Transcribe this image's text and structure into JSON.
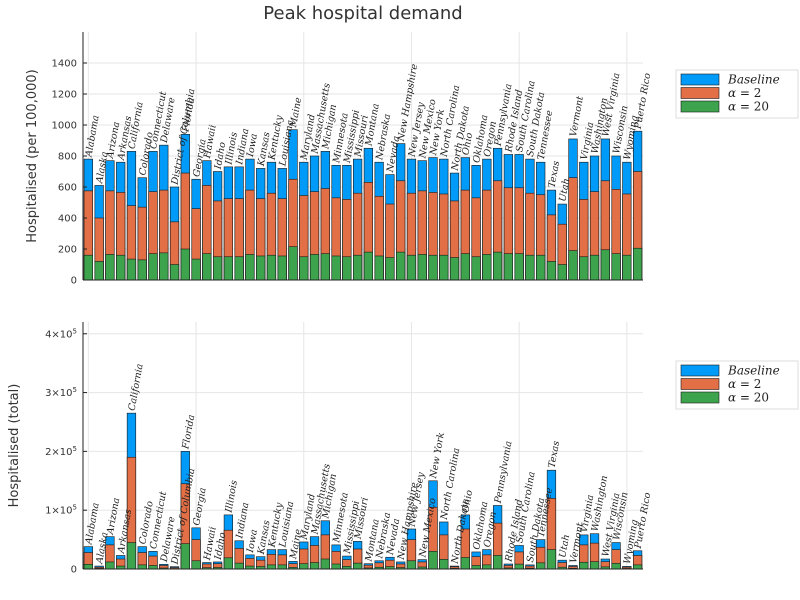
{
  "figure_title": "Peak hospital demand",
  "colors": {
    "baseline": "#009af9",
    "alpha2": "#e26f46",
    "alpha20": "#3da44d"
  },
  "chart_data": [
    {
      "type": "bar",
      "title": "Peak hospital demand",
      "ylabel": "Hospitalised (per 100,000)",
      "ylim": [
        0,
        1600
      ],
      "yticks": [
        0,
        200,
        400,
        600,
        800,
        1000,
        1200,
        1400
      ],
      "ytick_labels": [
        "0",
        "200",
        "400",
        "600",
        "800",
        "1000",
        "1200",
        "1400"
      ],
      "legend_placement": "right",
      "legend": [
        "Baseline",
        "α = 2",
        "α = 20"
      ],
      "grid": true,
      "categories": [
        "Alabama",
        "Alaska",
        "Arizona",
        "Arkansas",
        "California",
        "Colorado",
        "Connecticut",
        "Delaware",
        "District of Columbia",
        "Florida",
        "Georgia",
        "Hawaii",
        "Idaho",
        "Illinois",
        "Indiana",
        "Iowa",
        "Kansas",
        "Kentucky",
        "Louisiana",
        "Maine",
        "Maryland",
        "Massachusetts",
        "Michigan",
        "Minnesota",
        "Mississippi",
        "Missouri",
        "Montana",
        "Nebraska",
        "Nevada",
        "New Hampshire",
        "New Jersey",
        "New Mexico",
        "New York",
        "North Carolina",
        "North Dakota",
        "Ohio",
        "Oklahoma",
        "Oregon",
        "Pennsylvania",
        "Rhode Island",
        "South Carolina",
        "South Dakota",
        "Tennessee",
        "Texas",
        "Utah",
        "Vermont",
        "Virginia",
        "Washington",
        "West Virginia",
        "Wisconsin",
        "Wyoming",
        "Puerto Rico"
      ],
      "series": [
        {
          "name": "Baseline",
          "values": [
            780,
            610,
            770,
            760,
            830,
            660,
            830,
            870,
            600,
            940,
            650,
            770,
            700,
            730,
            730,
            780,
            720,
            760,
            720,
            970,
            760,
            800,
            830,
            740,
            740,
            780,
            850,
            760,
            680,
            880,
            780,
            770,
            790,
            780,
            690,
            790,
            740,
            780,
            850,
            810,
            810,
            780,
            760,
            580,
            490,
            910,
            760,
            800,
            910,
            800,
            760,
            960
          ]
        },
        {
          "name": "α = 2",
          "values": [
            575,
            400,
            575,
            565,
            480,
            470,
            570,
            580,
            375,
            690,
            460,
            610,
            510,
            525,
            525,
            580,
            525,
            560,
            525,
            650,
            545,
            570,
            590,
            530,
            520,
            560,
            630,
            540,
            490,
            640,
            560,
            575,
            565,
            555,
            510,
            580,
            530,
            580,
            640,
            595,
            595,
            560,
            550,
            420,
            360,
            660,
            520,
            570,
            640,
            585,
            555,
            700
          ]
        },
        {
          "name": "α = 20",
          "values": [
            160,
            120,
            165,
            160,
            135,
            130,
            170,
            175,
            100,
            200,
            135,
            170,
            150,
            150,
            150,
            165,
            155,
            160,
            155,
            215,
            150,
            165,
            170,
            155,
            150,
            160,
            180,
            155,
            145,
            180,
            160,
            165,
            160,
            160,
            145,
            170,
            150,
            165,
            180,
            170,
            170,
            160,
            160,
            120,
            100,
            190,
            150,
            160,
            195,
            170,
            160,
            205
          ]
        }
      ]
    },
    {
      "type": "bar",
      "ylabel": "Hospitalised (total)",
      "ylim": [
        0,
        420000
      ],
      "yticks": [
        0,
        100000,
        200000,
        300000,
        400000
      ],
      "ytick_labels": [
        {
          "mant": "0",
          "exp": ""
        },
        {
          "mant": "1×10",
          "exp": "5"
        },
        {
          "mant": "2×10",
          "exp": "5"
        },
        {
          "mant": "3×10",
          "exp": "5"
        },
        {
          "mant": "4×10",
          "exp": "5"
        }
      ],
      "legend_placement": "right",
      "legend": [
        "Baseline",
        "α = 2",
        "α = 20"
      ],
      "grid": true,
      "categories": [
        "Alabama",
        "Alaska",
        "Arizona",
        "Arkansas",
        "California",
        "Colorado",
        "Connecticut",
        "Delaware",
        "District of Columbia",
        "Florida",
        "Georgia",
        "Hawaii",
        "Idaho",
        "Illinois",
        "Indiana",
        "Iowa",
        "Kansas",
        "Kentucky",
        "Louisiana",
        "Maine",
        "Maryland",
        "Massachusetts",
        "Michigan",
        "Minnesota",
        "Mississippi",
        "Missouri",
        "Montana",
        "Nebraska",
        "Nevada",
        "New Hampshire",
        "New Jersey",
        "New Mexico",
        "New York",
        "North Carolina",
        "North Dakota",
        "Ohio",
        "Oklahoma",
        "Oregon",
        "Pennsylvania",
        "Rhode Island",
        "South Carolina",
        "South Dakota",
        "Tennessee",
        "Texas",
        "Utah",
        "Vermont",
        "Virginia",
        "Washington",
        "West Virginia",
        "Wisconsin",
        "Wyoming",
        "Puerto Rico"
      ],
      "series": [
        {
          "name": "Baseline",
          "values": [
            38000,
            5000,
            55000,
            23000,
            265000,
            38000,
            30000,
            8000,
            4000,
            200000,
            70000,
            11000,
            12000,
            92000,
            48000,
            24000,
            21000,
            33000,
            33000,
            13000,
            46000,
            55000,
            82000,
            41000,
            22000,
            47000,
            9000,
            14000,
            20000,
            12000,
            68000,
            16000,
            150000,
            80000,
            5000,
            92000,
            29000,
            33000,
            108000,
            8500,
            40000,
            7000,
            50000,
            168000,
            15000,
            6000,
            58000,
            60000,
            17000,
            45000,
            4500,
            31000
          ]
        },
        {
          "name": "α = 2",
          "values": [
            28000,
            3000,
            41000,
            17000,
            190000,
            28000,
            22000,
            6000,
            2500,
            145000,
            50000,
            8500,
            9000,
            66000,
            35000,
            18000,
            15000,
            25000,
            24000,
            9000,
            34000,
            40000,
            58000,
            30000,
            16000,
            34000,
            6500,
            10500,
            15000,
            8500,
            50000,
            12000,
            105000,
            58000,
            3700,
            68000,
            21000,
            24000,
            78000,
            6000,
            29000,
            5000,
            37000,
            120000,
            11000,
            4300,
            41000,
            44000,
            12500,
            33000,
            3200,
            23000
          ]
        },
        {
          "name": "α = 20",
          "values": [
            8000,
            1000,
            12000,
            5000,
            45000,
            7000,
            6000,
            1700,
            700,
            43000,
            14000,
            2300,
            2600,
            19000,
            10000,
            5000,
            4300,
            7000,
            7000,
            2800,
            9000,
            11000,
            17000,
            8500,
            4500,
            10000,
            1800,
            3000,
            4100,
            2500,
            14000,
            3400,
            30000,
            16500,
            1100,
            19500,
            6000,
            7000,
            23000,
            1800,
            8300,
            1400,
            10500,
            33000,
            3100,
            1200,
            11500,
            12500,
            3600,
            9500,
            900,
            7000
          ]
        }
      ]
    }
  ]
}
